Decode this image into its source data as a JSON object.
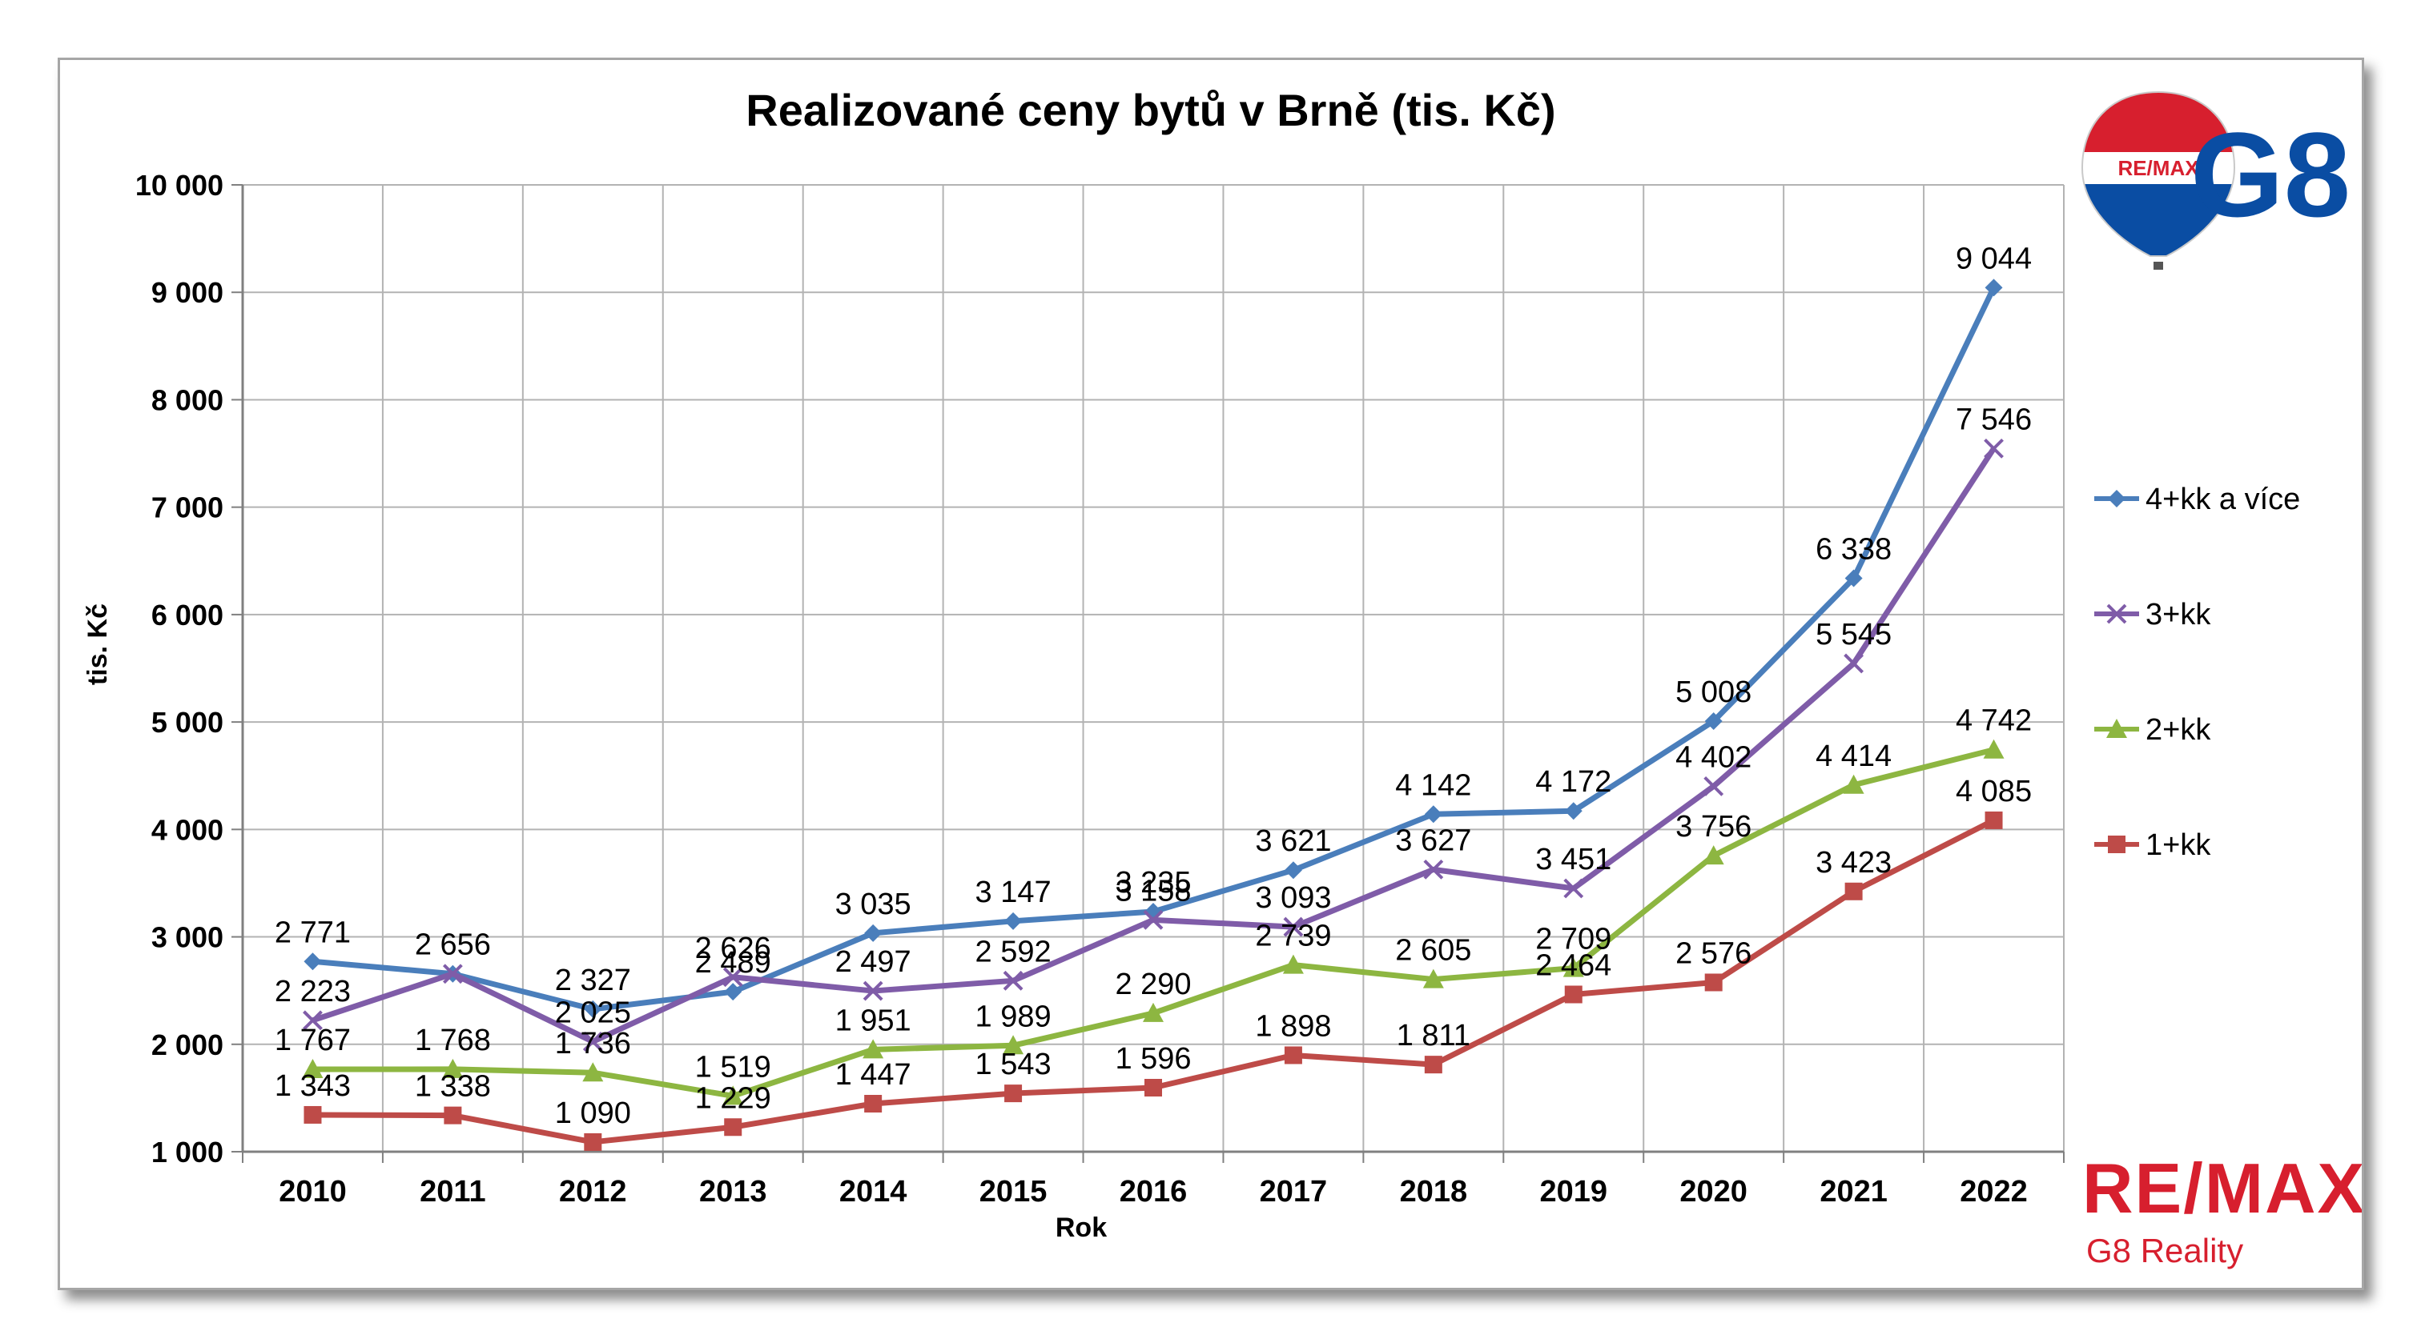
{
  "chart_data": {
    "type": "line",
    "title": "Realizované ceny bytů v Brně (tis. Kč)",
    "xlabel": "Rok",
    "ylabel": "tis. Kč",
    "ylim": [
      1000,
      10000
    ],
    "yticks": [
      1000,
      2000,
      3000,
      4000,
      5000,
      6000,
      7000,
      8000,
      9000,
      10000
    ],
    "ytick_labels": [
      "1 000",
      "2 000",
      "3 000",
      "4 000",
      "5 000",
      "6 000",
      "7 000",
      "8 000",
      "9 000",
      "10 000"
    ],
    "categories": [
      "2010",
      "2011",
      "2012",
      "2013",
      "2014",
      "2015",
      "2016",
      "2017",
      "2018",
      "2019",
      "2020",
      "2021",
      "2022"
    ],
    "grid": true,
    "legend_position": "right",
    "series": [
      {
        "name": "4+kk a více",
        "color": "#4a7ebb",
        "marker": "diamond",
        "values": [
          2771,
          2656,
          2327,
          2489,
          3035,
          3147,
          3235,
          3621,
          4142,
          4172,
          5008,
          6338,
          9044
        ],
        "labels": [
          "2 771",
          "2 656",
          "2 327",
          "2 489",
          "3 035",
          "3 147",
          "3 235",
          "3 621",
          "4 142",
          "4 172",
          "5 008",
          "6 338",
          "9 044"
        ]
      },
      {
        "name": "3+kk",
        "color": "#7f5ca8",
        "marker": "x",
        "values": [
          2223,
          2656,
          2025,
          2626,
          2497,
          2592,
          3158,
          3093,
          3627,
          3451,
          4402,
          5545,
          7546
        ],
        "labels": [
          "2 223",
          "",
          "2 025",
          "2 626",
          "2 497",
          "2 592",
          "3 158",
          "3 093",
          "3 627",
          "3 451",
          "4 402",
          "5 545",
          "7 546"
        ]
      },
      {
        "name": "2+kk",
        "color": "#8db641",
        "marker": "triangle",
        "values": [
          1767,
          1768,
          1736,
          1519,
          1951,
          1989,
          2290,
          2739,
          2605,
          2709,
          3756,
          4414,
          4742
        ],
        "labels": [
          "1 767",
          "1 768",
          "1 736",
          "1 519",
          "1 951",
          "1 989",
          "2 290",
          "2 739",
          "2 605",
          "2 709",
          "3 756",
          "4 414",
          "4 742"
        ]
      },
      {
        "name": "1+kk",
        "color": "#be4b48",
        "marker": "square",
        "values": [
          1343,
          1338,
          1090,
          1229,
          1447,
          1543,
          1596,
          1898,
          1811,
          2464,
          2576,
          3423,
          4085
        ],
        "labels": [
          "1 343",
          "1 338",
          "1 090",
          "1 229",
          "1 447",
          "1 543",
          "1 596",
          "1 898",
          "1 811",
          "2 464",
          "2 576",
          "3 423",
          "4 085"
        ]
      }
    ]
  },
  "branding": {
    "balloon_text": "RE/MAX",
    "g8_text": "G8",
    "remax_word": "RE/MAX",
    "remax_sub": "G8 Reality",
    "red": "#d71f2e",
    "blue": "#0a4da3"
  }
}
